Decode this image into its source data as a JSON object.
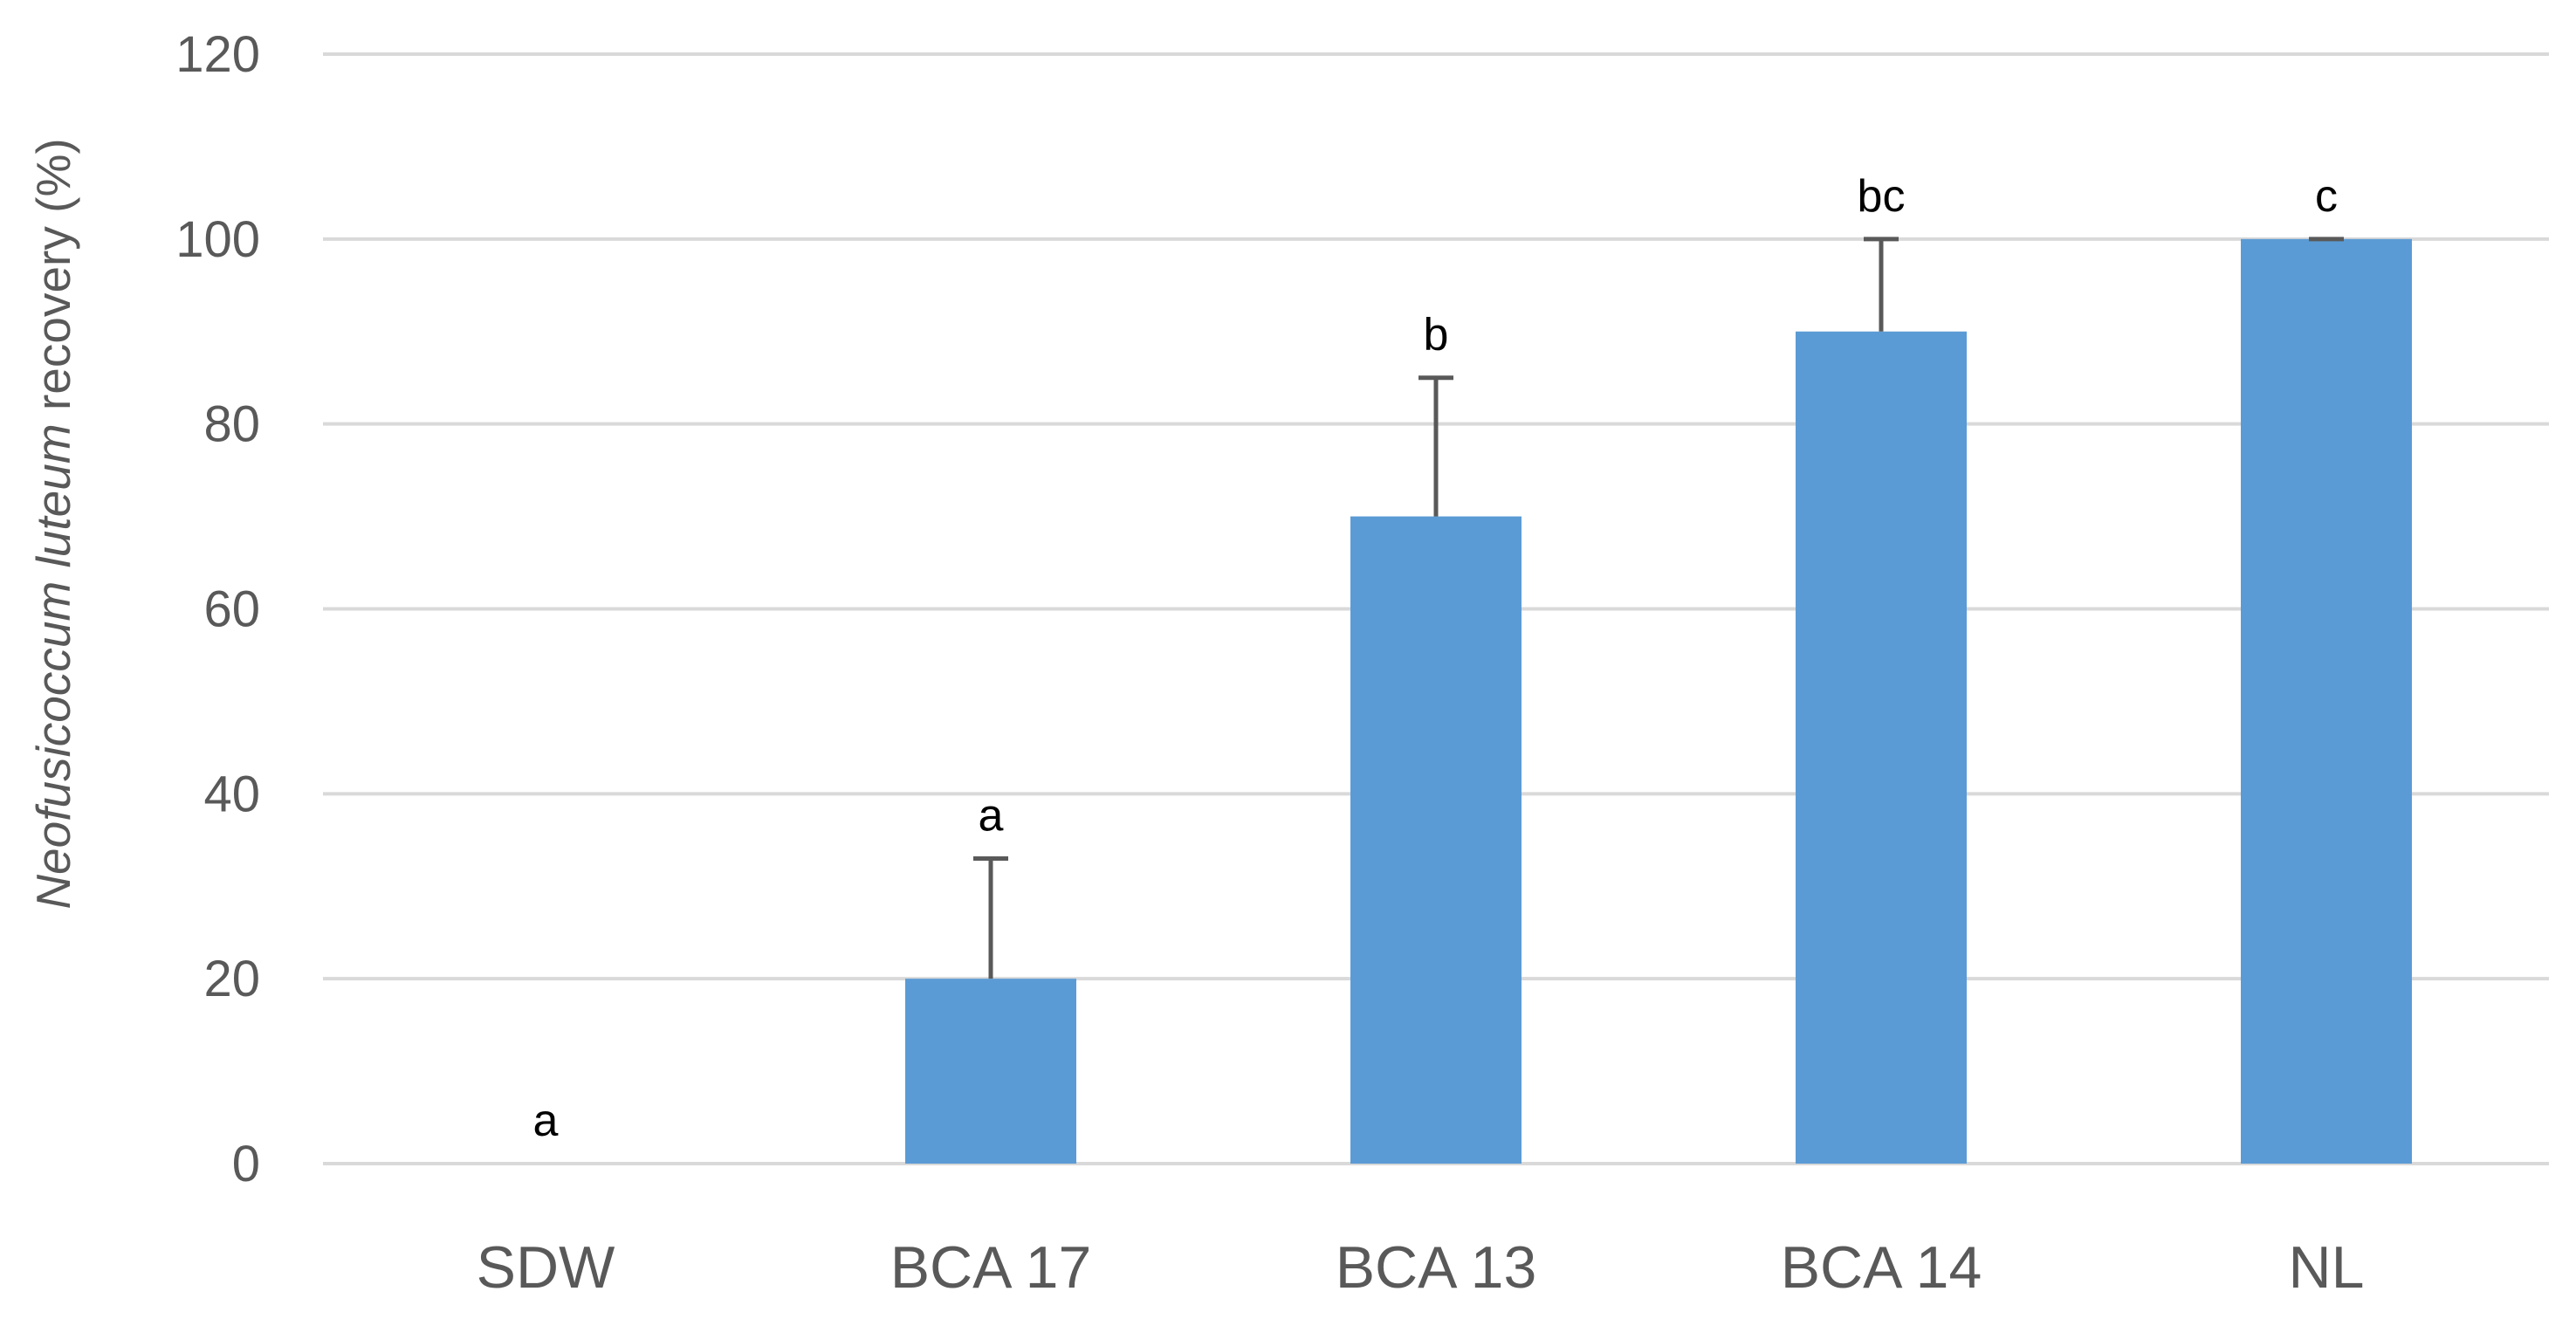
{
  "chart_data": {
    "type": "bar",
    "title": "",
    "xlabel": "",
    "ylabel": {
      "italic_part": "Neofusicoccum luteum",
      "plain_part": " recovery (%)"
    },
    "categories": [
      "SDW",
      "BCA 17",
      "BCA 13",
      "BCA 14",
      "NL"
    ],
    "series": [
      {
        "values": [
          0,
          20,
          70,
          90,
          100
        ],
        "error_plus": [
          0,
          13,
          15,
          10,
          0
        ],
        "letters": [
          "a",
          "a",
          "b",
          "bc",
          "c"
        ]
      }
    ],
    "ylim": [
      0,
      120
    ],
    "yticks": [
      0,
      20,
      40,
      60,
      80,
      100,
      120
    ],
    "grid": true,
    "legend": "none",
    "colors": {
      "bar": "#5B9BD5",
      "gridline": "#D9D9D9",
      "error_bar": "#595959",
      "tick_label": "#595959",
      "axis_label": "#595959",
      "letter": "#000000"
    }
  }
}
